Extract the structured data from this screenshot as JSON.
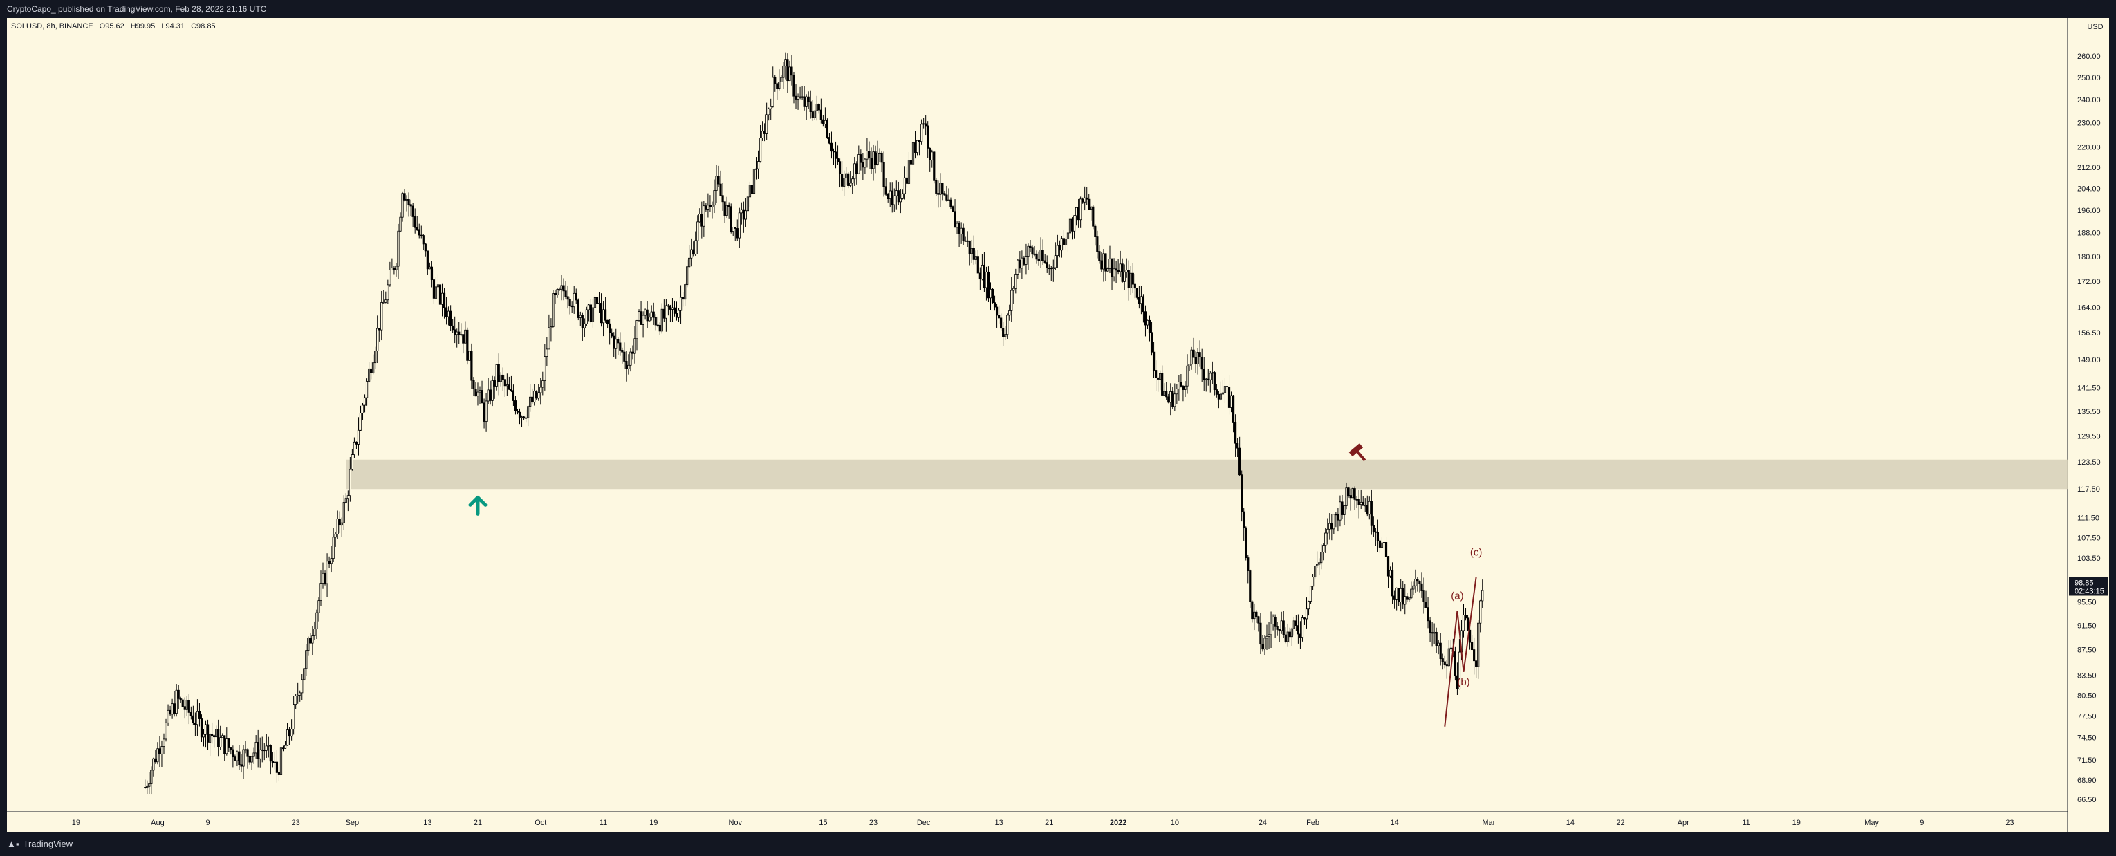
{
  "header": {
    "publisher": "CryptoCapo_ published on TradingView.com, Feb 28, 2022 21:16 UTC"
  },
  "footer": {
    "brand": "TradingView",
    "logo": "tv-logo-icon"
  },
  "legend": {
    "symbol": "SOLUSD, 8h, BINANCE",
    "open": "O95.62",
    "high": "H99.95",
    "low": "L94.31",
    "close": "C98.85"
  },
  "chart_data": {
    "type": "candlestick",
    "currency_label": "USD",
    "price_axis_ticks": [
      "260.00",
      "250.00",
      "240.00",
      "230.00",
      "220.00",
      "212.00",
      "204.00",
      "196.00",
      "188.00",
      "180.00",
      "172.00",
      "164.00",
      "156.50",
      "149.00",
      "141.50",
      "135.50",
      "129.50",
      "123.50",
      "117.50",
      "111.50",
      "107.50",
      "103.50",
      "98.85",
      "95.50",
      "91.50",
      "87.50",
      "83.50",
      "80.50",
      "77.50",
      "74.50",
      "71.50",
      "68.90",
      "66.50"
    ],
    "time_axis_ticks": [
      "19",
      "Aug",
      "9",
      "23",
      "Sep",
      "13",
      "21",
      "Oct",
      "11",
      "19",
      "Nov",
      "15",
      "23",
      "Dec",
      "13",
      "21",
      "2022",
      "10",
      "24",
      "Feb",
      "14",
      "Mar",
      "14",
      "22",
      "Apr",
      "11",
      "19",
      "May",
      "9",
      "23"
    ],
    "last_price": {
      "value": "98.85",
      "countdown": "02:43:15"
    },
    "close_path": [
      [
        "2021-07-30",
        68
      ],
      [
        "2021-08-04",
        80
      ],
      [
        "2021-08-08",
        76
      ],
      [
        "2021-08-11",
        74
      ],
      [
        "2021-08-14",
        72
      ],
      [
        "2021-08-18",
        73
      ],
      [
        "2021-08-20",
        70
      ],
      [
        "2021-08-22",
        75
      ],
      [
        "2021-08-25",
        88
      ],
      [
        "2021-08-28",
        102
      ],
      [
        "2021-08-31",
        115
      ],
      [
        "2021-09-03",
        140
      ],
      [
        "2021-09-06",
        165
      ],
      [
        "2021-09-08",
        180
      ],
      [
        "2021-09-09",
        205
      ],
      [
        "2021-09-12",
        185
      ],
      [
        "2021-09-14",
        170
      ],
      [
        "2021-09-17",
        160
      ],
      [
        "2021-09-19",
        155
      ],
      [
        "2021-09-20",
        145
      ],
      [
        "2021-09-22",
        135
      ],
      [
        "2021-09-24",
        145
      ],
      [
        "2021-09-26",
        140
      ],
      [
        "2021-09-28",
        135
      ],
      [
        "2021-10-01",
        140
      ],
      [
        "2021-10-03",
        165
      ],
      [
        "2021-10-05",
        170
      ],
      [
        "2021-10-08",
        160
      ],
      [
        "2021-10-10",
        165
      ],
      [
        "2021-10-12",
        156
      ],
      [
        "2021-10-15",
        148
      ],
      [
        "2021-10-17",
        162
      ],
      [
        "2021-10-20",
        160
      ],
      [
        "2021-10-23",
        164
      ],
      [
        "2021-10-26",
        190
      ],
      [
        "2021-10-29",
        205
      ],
      [
        "2021-11-01",
        188
      ],
      [
        "2021-11-03",
        198
      ],
      [
        "2021-11-05",
        220
      ],
      [
        "2021-11-07",
        246
      ],
      [
        "2021-11-09",
        255
      ],
      [
        "2021-11-11",
        240
      ],
      [
        "2021-11-13",
        236
      ],
      [
        "2021-11-15",
        234
      ],
      [
        "2021-11-18",
        205
      ],
      [
        "2021-11-20",
        212
      ],
      [
        "2021-11-22",
        216
      ],
      [
        "2021-11-24",
        215
      ],
      [
        "2021-11-26",
        196
      ],
      [
        "2021-11-28",
        207
      ],
      [
        "2021-12-01",
        232
      ],
      [
        "2021-12-03",
        205
      ],
      [
        "2021-12-05",
        196
      ],
      [
        "2021-12-07",
        188
      ],
      [
        "2021-12-09",
        180
      ],
      [
        "2021-12-11",
        172
      ],
      [
        "2021-12-14",
        156
      ],
      [
        "2021-12-16",
        178
      ],
      [
        "2021-12-18",
        182
      ],
      [
        "2021-12-21",
        176
      ],
      [
        "2021-12-24",
        190
      ],
      [
        "2021-12-27",
        200
      ],
      [
        "2021-12-29",
        180
      ],
      [
        "2022-01-01",
        175
      ],
      [
        "2022-01-03",
        172
      ],
      [
        "2022-01-05",
        165
      ],
      [
        "2022-01-07",
        145
      ],
      [
        "2022-01-09",
        138
      ],
      [
        "2022-01-11",
        142
      ],
      [
        "2022-01-13",
        150
      ],
      [
        "2022-01-15",
        145
      ],
      [
        "2022-01-17",
        141
      ],
      [
        "2022-01-19",
        138
      ],
      [
        "2022-01-20",
        125
      ],
      [
        "2022-01-22",
        95
      ],
      [
        "2022-01-24",
        88
      ],
      [
        "2022-01-26",
        93
      ],
      [
        "2022-01-28",
        90
      ],
      [
        "2022-01-30",
        91
      ],
      [
        "2022-02-01",
        100
      ],
      [
        "2022-02-03",
        107
      ],
      [
        "2022-02-05",
        113
      ],
      [
        "2022-02-07",
        117
      ],
      [
        "2022-02-08",
        117
      ],
      [
        "2022-02-10",
        113
      ],
      [
        "2022-02-12",
        106
      ],
      [
        "2022-02-14",
        97
      ],
      [
        "2022-02-16",
        95
      ],
      [
        "2022-02-18",
        100
      ],
      [
        "2022-02-20",
        90
      ],
      [
        "2022-02-22",
        84
      ],
      [
        "2022-02-23",
        88
      ],
      [
        "2022-02-24",
        83
      ],
      [
        "2022-02-25",
        92
      ],
      [
        "2022-02-26",
        90
      ],
      [
        "2022-02-27",
        86
      ],
      [
        "2022-02-28",
        98.85
      ]
    ],
    "support_zone": {
      "low": 117.5,
      "high": 124
    },
    "annotations": [
      {
        "type": "arrow-up",
        "color": "#089981",
        "date": "2021-09-21",
        "price": 116
      },
      {
        "type": "hammer-icon",
        "color": "#7f1d1d",
        "date": "2022-02-08",
        "price": 126
      },
      {
        "type": "label",
        "text": "(a)",
        "color": "#7f1d1d",
        "date": "2022-02-24",
        "price": 96
      },
      {
        "type": "label",
        "text": "(b)",
        "color": "#7f1d1d",
        "date": "2022-02-25",
        "price": 82
      },
      {
        "type": "label",
        "text": "(c)",
        "color": "#7f1d1d",
        "date": "2022-02-27",
        "price": 104
      }
    ],
    "colors": {
      "background": "#fdf8e1",
      "candle": "#000000",
      "zone": "#d6d0b8",
      "annotation": "#7f1d1d",
      "arrow": "#089981"
    }
  }
}
